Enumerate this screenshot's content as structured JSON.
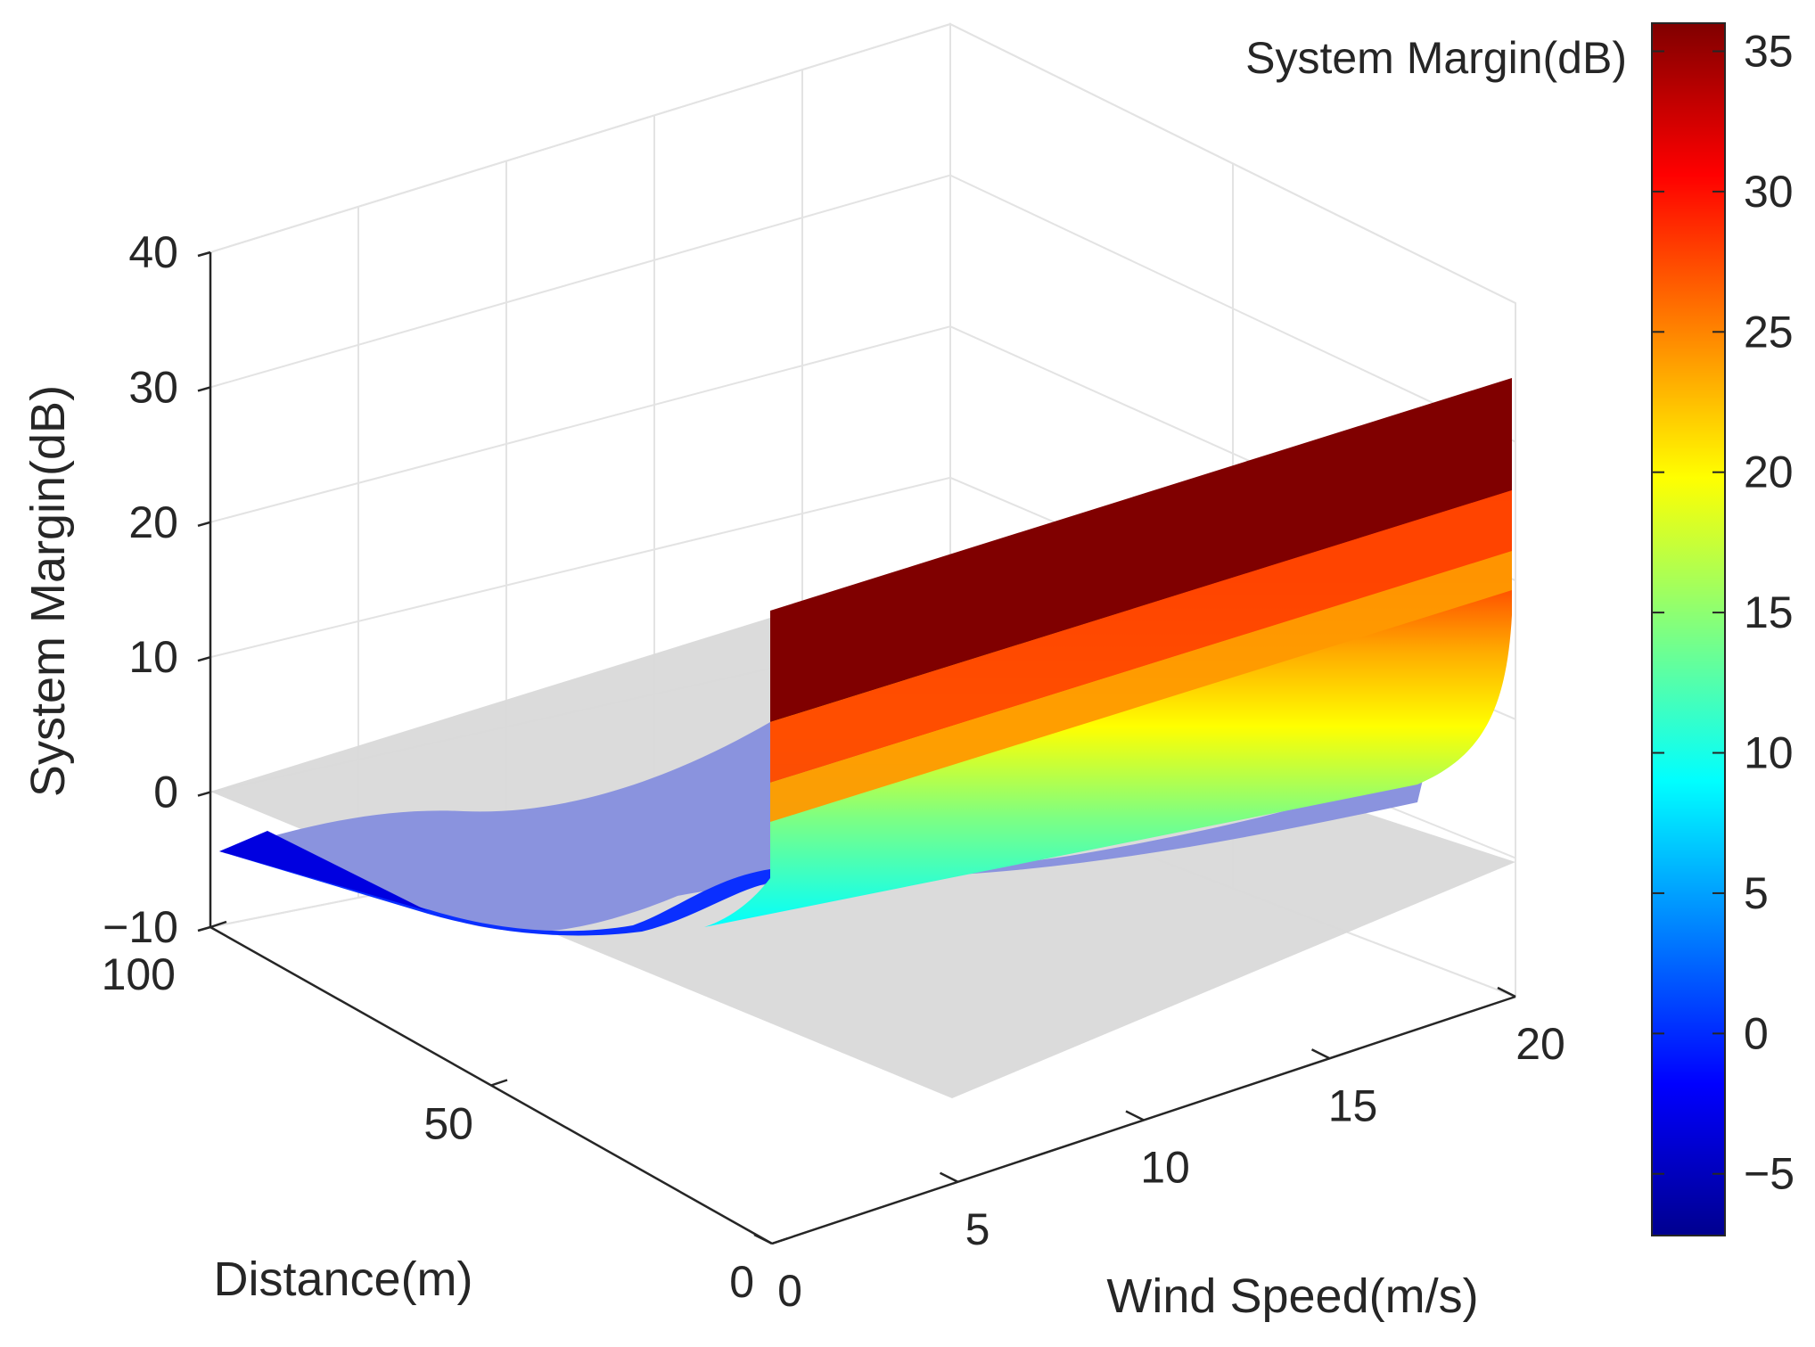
{
  "chart_data": {
    "type": "surface3d",
    "title": "",
    "xlabel": "Wind Speed(m/s)",
    "ylabel": "Distance(m)",
    "zlabel": "System Margin(dB)",
    "xlim": [
      0,
      20
    ],
    "ylim": [
      0,
      100
    ],
    "zlim": [
      -10,
      40
    ],
    "x_ticks": [
      "0",
      "5",
      "10",
      "15",
      "20"
    ],
    "y_ticks": [
      "0",
      "50",
      "100"
    ],
    "z_ticks": [
      "−10",
      "0",
      "10",
      "20",
      "30",
      "40"
    ],
    "grid": true,
    "reference_plane": {
      "z": 0,
      "color": "#d4d4d4"
    },
    "surface": {
      "description": "System margin vs wind speed and distance",
      "wind_speed": [
        0,
        2,
        4,
        6,
        8,
        10,
        12,
        14,
        16,
        18,
        20
      ],
      "distance": [
        0,
        50,
        100
      ],
      "margin_at_distance_100": [
        -4.5,
        -4.5,
        -4.4,
        -4.4,
        -4.3,
        -4.3,
        -4.3,
        -4.2,
        -4.2,
        -4.2,
        -4.1
      ],
      "margin_at_distance_50": [
        -4,
        -4,
        -4,
        -4,
        -4,
        -4,
        -4,
        -4,
        -4,
        -4,
        -4
      ],
      "margin_at_distance_0": [
        35,
        35,
        35,
        35,
        35,
        35,
        35,
        35,
        35,
        35,
        35
      ],
      "min_value": -7.2,
      "max_value": 36
    },
    "colorbar": {
      "label": "System Margin(dB)",
      "colormap": "jet",
      "range": [
        -7.2,
        36
      ],
      "ticks": [
        "−5",
        "0",
        "5",
        "10",
        "15",
        "20",
        "25",
        "30",
        "35"
      ],
      "tick_values": [
        -5,
        0,
        5,
        10,
        15,
        20,
        25,
        30,
        35
      ]
    }
  }
}
